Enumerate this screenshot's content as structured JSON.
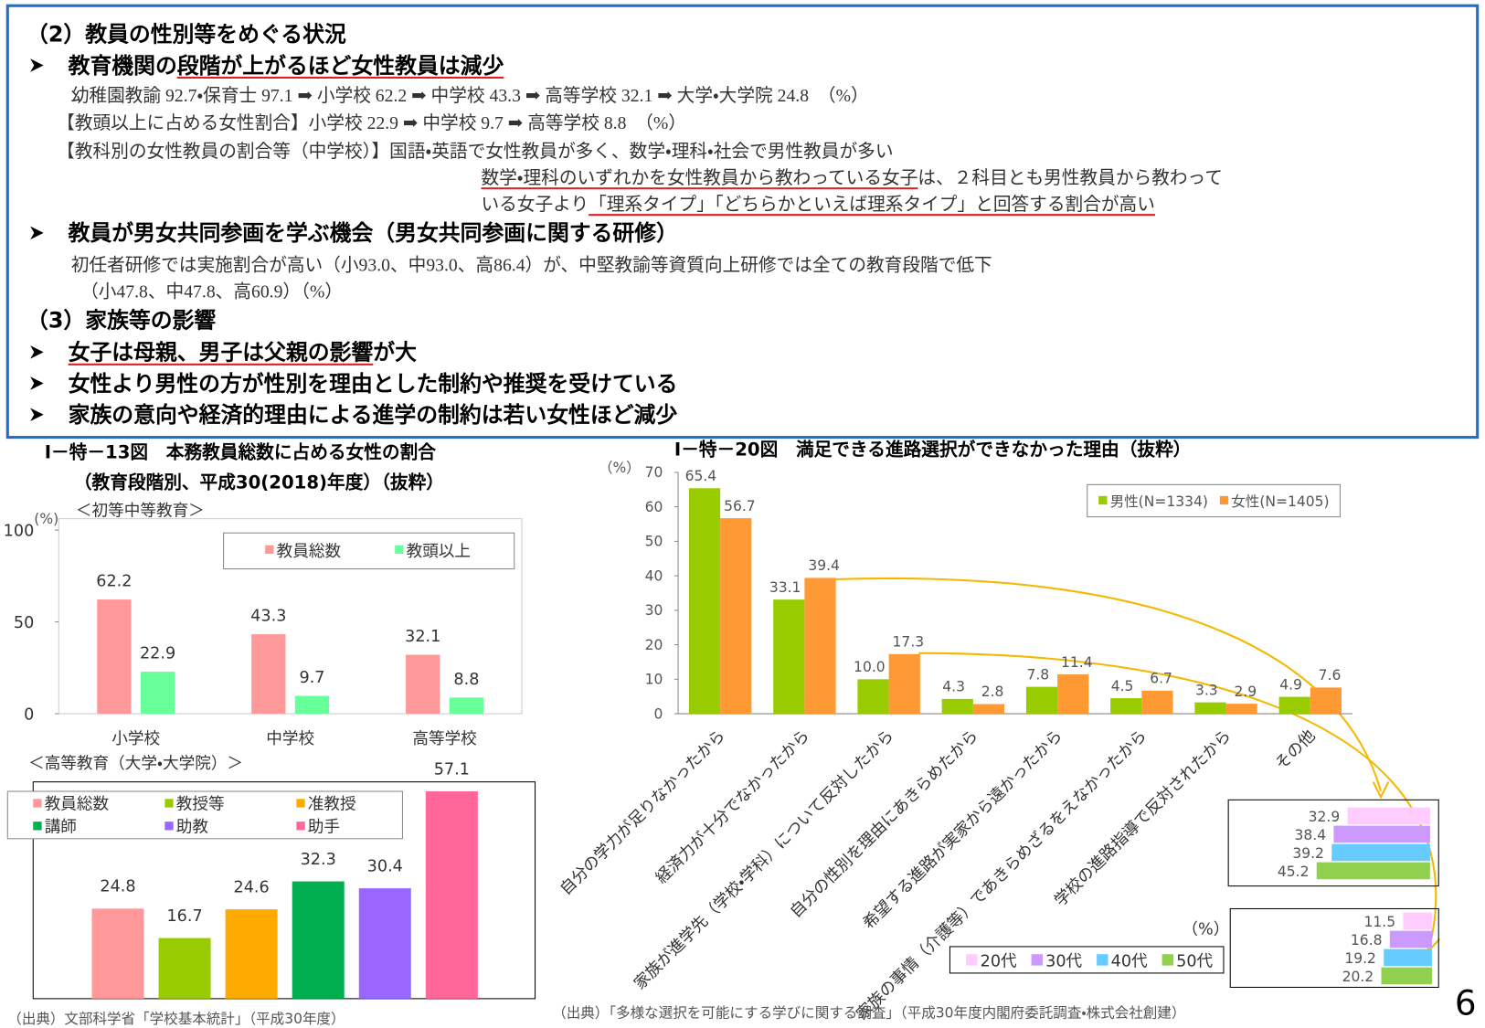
{
  "text_box": {
    "lines": [
      [
        "（2）教員の性別等をめぐる状況"
      ],
      [
        "教育機関の",
        "段階が上がるほど女性教員は減少"
      ],
      [
        "幼稚園教諭 92.7・保育士 97.1 ➡ 小学校 62.2 ➡ 中学校 43.3 ➡ 高等学校 32.1 ➡ 大学・大学院 24.8　（%）"
      ],
      [
        "【教頭以上に占める女性割合】小学校 22.9 ➡ 中学校 9.7 ➡ 高等学校 8.8　（%）"
      ],
      [
        "【教科別の女性教員の割合等（中学校）】国語・英語で女性教員が多く、数学・理科・社会で男性教員が多い"
      ],
      [
        "数学・理科のいずれかを女性教員から教わっている女子",
        "は、２科目とも男性教員から教わって"
      ],
      [
        "いる女子より",
        "「理系タイプ」「どちらかといえば理系タイプ」と回答する割合が高い"
      ],
      [
        "教員が男女共同参画を学ぶ機会（男女共同参画に関する研修）"
      ],
      [
        "初任者研修では実施割合が高い（小93.0、中93.0、高86.4）が、中堅教諭等資質向上研修では全ての教育段階で低下"
      ],
      [
        "（小47.8、中47.8、高60.9）（%）"
      ],
      [
        "（3）家族等の影響"
      ],
      [
        "女子は母親、男子は父親の影響",
        "が大"
      ],
      [
        "女性より男性の方が性別を理由とした制約や推奨を受けている"
      ],
      [
        "家族の意向や経済的理由による進学の制約は若い女性ほど減少"
      ]
    ]
  },
  "chart_data": [
    {
      "type": "bar",
      "title": "Ⅰ－特－13図　本務教員総数に占める女性の割合",
      "subtitle": "（教育段階別、平成30(2018)年度）（抜粋）",
      "section": "＜初等中等教育＞",
      "y_unit": "(%)",
      "categories": [
        "小学校",
        "中学校",
        "高等学校"
      ],
      "series": [
        {
          "name": "教員総数",
          "color": "#ff9999",
          "values": [
            62.2,
            43.3,
            32.1
          ]
        },
        {
          "name": "教頭以上",
          "color": "#66ff99",
          "values": [
            22.9,
            9.7,
            8.8
          ]
        }
      ],
      "ylim": [
        0,
        100
      ],
      "yticks": [
        0,
        50,
        100
      ]
    },
    {
      "type": "bar",
      "section": "＜高等教育（大学・大学院）＞",
      "series": [
        {
          "name": "教員総数",
          "color": "#ff9999",
          "values": [
            24.8
          ]
        },
        {
          "name": "教授等",
          "color": "#99cc00",
          "values": [
            16.7
          ]
        },
        {
          "name": "准教授",
          "color": "#ffaa00",
          "values": [
            24.6
          ]
        },
        {
          "name": "講師",
          "color": "#00b050",
          "values": [
            32.3
          ]
        },
        {
          "name": "助教",
          "color": "#9966ff",
          "values": [
            30.4
          ]
        },
        {
          "name": "助手",
          "color": "#ff6699",
          "values": [
            57.1
          ]
        }
      ]
    },
    {
      "type": "bar",
      "title": "Ⅰ－特－20図　満足できる進路選択ができなかった理由（抜粋）",
      "y_unit": "（%）",
      "categories": [
        "自分の学力が足りなかったから",
        "経済力が十分でなかったから",
        "家族が進学先（学校・学科）について反対したから",
        "自分の性別を理由にあきらめたから",
        "希望する進路が実家から遠かったから",
        "家族の事情（介護等）であきらめざるをえなかったから",
        "学校の進路指導で反対されたから",
        "その他"
      ],
      "series": [
        {
          "name": "男性(N=1334)",
          "color": "#99cc00",
          "values": [
            65.4,
            33.1,
            10.0,
            4.3,
            7.8,
            4.5,
            3.3,
            4.9
          ],
          "value_labels": [
            "65.4",
            "33.1",
            "10.0",
            "4.3",
            "7.8",
            "4.5",
            "3.3",
            "4.9"
          ]
        },
        {
          "name": "女性(N=1405)",
          "color": "#ff9933",
          "values": [
            56.7,
            39.4,
            17.3,
            2.8,
            11.4,
            6.7,
            2.9,
            7.6
          ]
        }
      ],
      "ylim": [
        0,
        70
      ],
      "yticks": [
        0,
        10,
        20,
        30,
        40,
        50,
        60,
        70
      ]
    },
    {
      "type": "barh",
      "y_unit": "（%）",
      "categories": [
        null,
        null
      ],
      "series": [
        {
          "name": "20代",
          "color": "#ffccff",
          "values": [
            32.9,
            11.5
          ]
        },
        {
          "name": "30代",
          "color": "#cc99ff",
          "values": [
            38.4,
            16.8
          ]
        },
        {
          "name": "40代",
          "color": "#66ccff",
          "values": [
            39.2,
            19.2
          ]
        },
        {
          "name": "50代",
          "color": "#92d050",
          "values": [
            45.2,
            20.2
          ]
        }
      ]
    }
  ],
  "sources": [
    "（出典）文部科学省「学校基本統計」（平成30年度）",
    "（出典）「多様な選択を可能にする学びに関する調査」（平成30年度内閣府委託調査・株式会社創建）"
  ],
  "page_number": "6"
}
